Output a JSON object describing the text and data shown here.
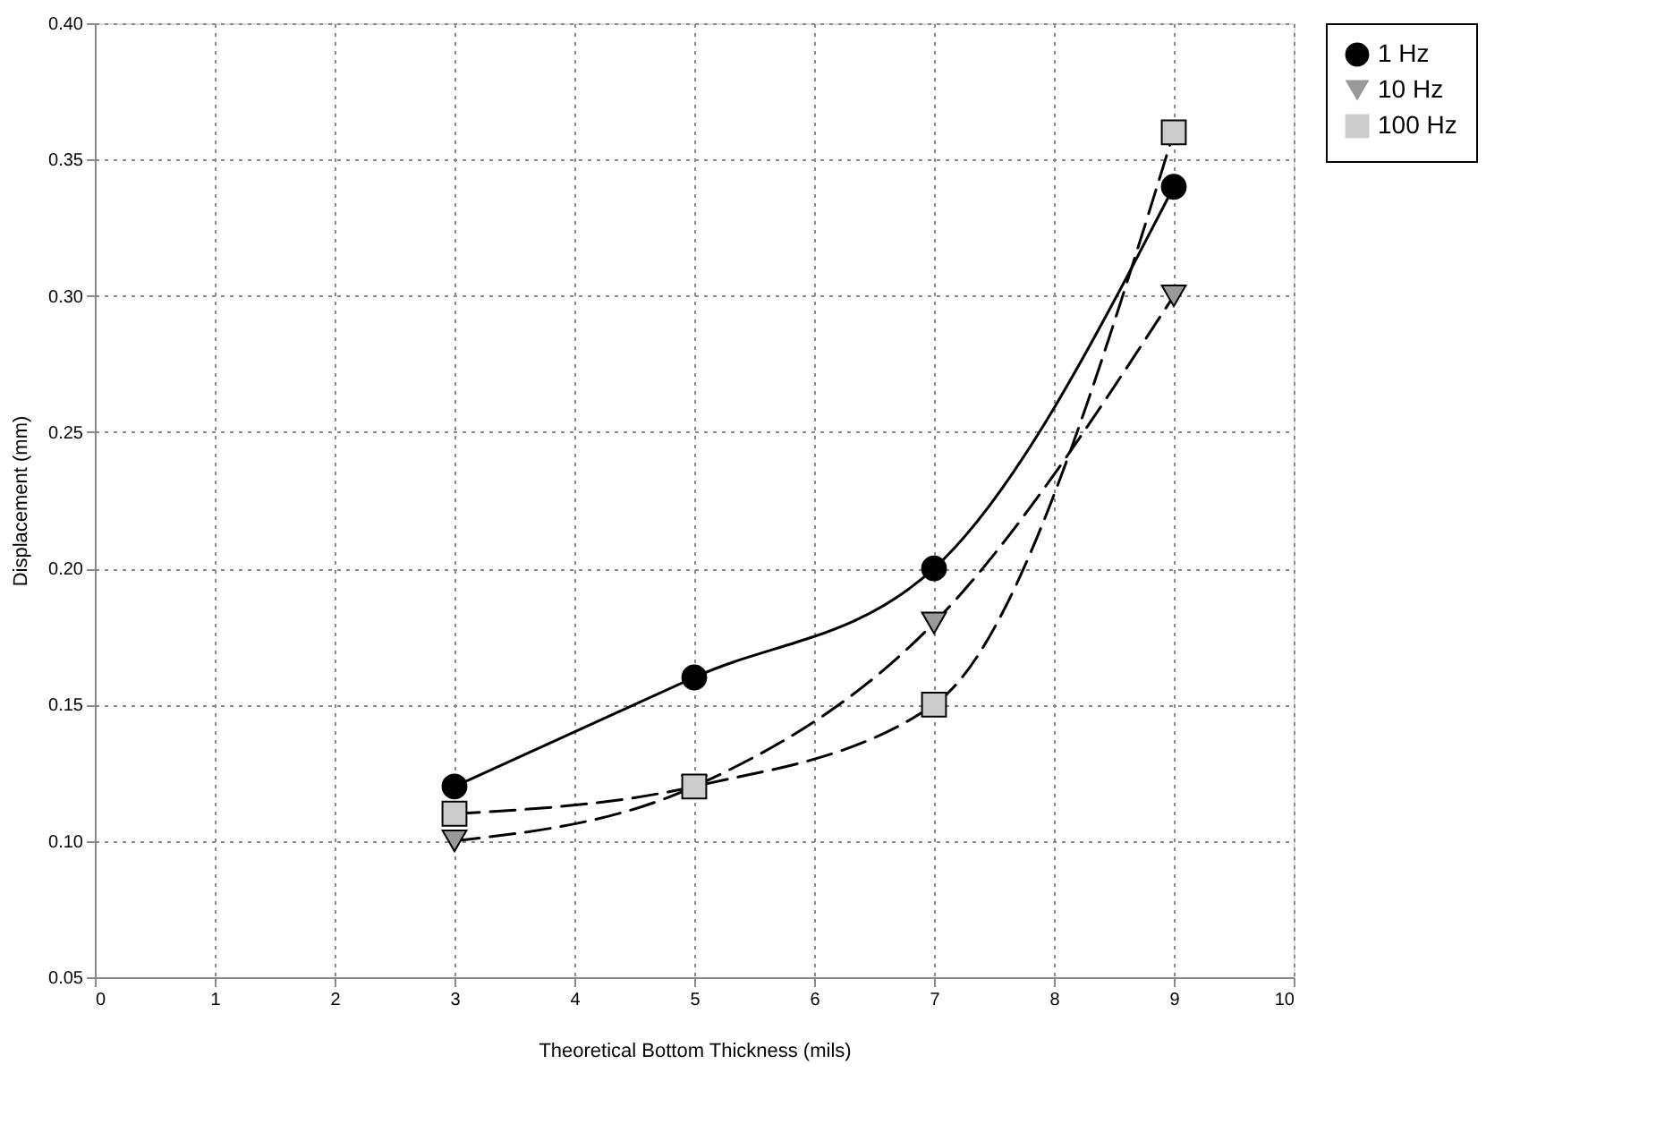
{
  "chart_data": {
    "type": "line",
    "xlabel": "Theoretical Bottom Thickness (mils)",
    "ylabel": "Displacement (mm)",
    "x": [
      3,
      5,
      7,
      9
    ],
    "series": [
      {
        "name": "1 Hz",
        "color": "#000000",
        "marker": "circle",
        "line_style": "solid",
        "values": [
          0.12,
          0.16,
          0.2,
          0.34
        ]
      },
      {
        "name": "10 Hz",
        "color": "#999999",
        "marker": "triangle-down",
        "line_style": "dashed",
        "values": [
          0.1,
          0.12,
          0.18,
          0.3
        ]
      },
      {
        "name": "100 Hz",
        "color": "#cccccc",
        "marker": "square",
        "line_style": "dashed",
        "values": [
          0.11,
          0.12,
          0.15,
          0.36
        ]
      }
    ],
    "xlim": [
      0,
      10
    ],
    "xticks": [
      0,
      1,
      2,
      3,
      4,
      5,
      6,
      7,
      8,
      9,
      10
    ],
    "ylim": [
      0.05,
      0.4
    ],
    "yticks": [
      0.05,
      {
        "value": 0.1,
        "label": "0.10"
      },
      0.15,
      {
        "value": 0.2,
        "label": "0.20"
      },
      0.25,
      {
        "value": 0.3,
        "label": "0.30"
      },
      0.35,
      {
        "value": 0.4,
        "label": "0.40"
      }
    ],
    "grid": true,
    "legend": "top right"
  }
}
